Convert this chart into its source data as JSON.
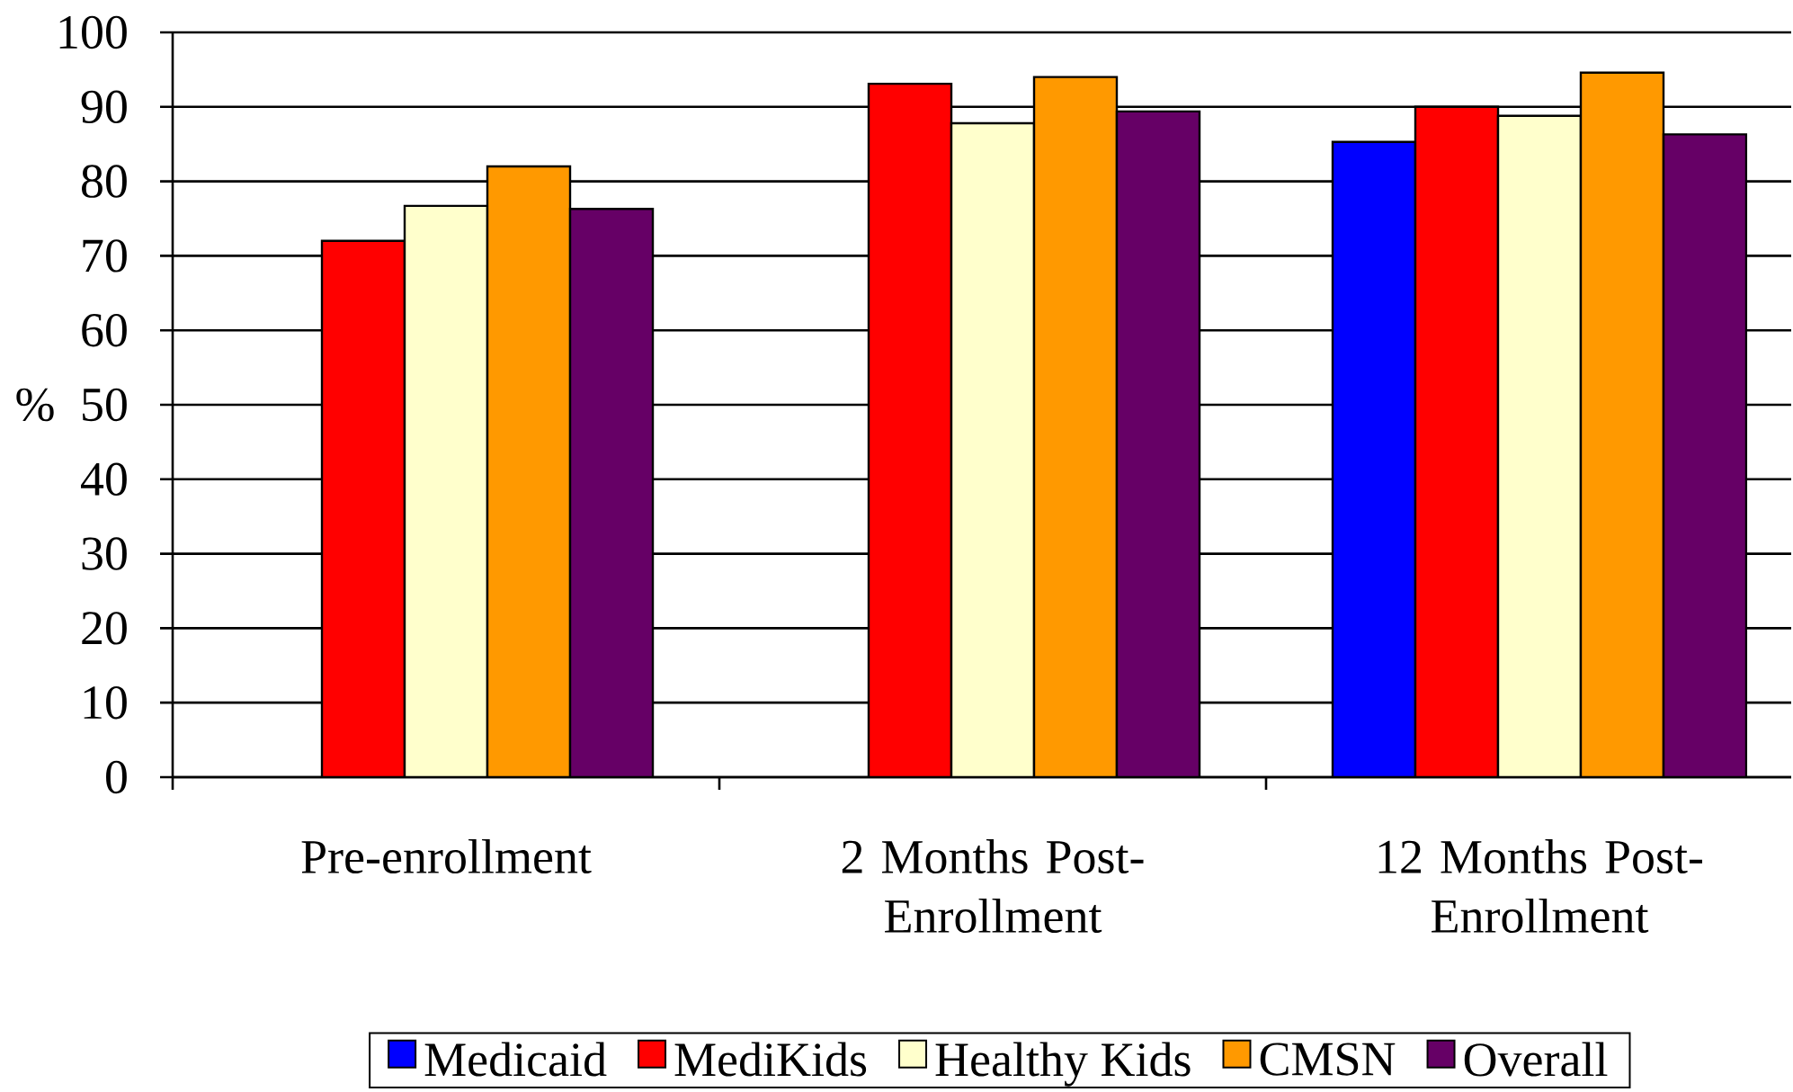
{
  "chart_data": {
    "type": "bar",
    "ylabel": "%",
    "categories": [
      "Pre-enrollment",
      "2 Months Post-Enrollment",
      "12 Months Post-Enrollment"
    ],
    "series": [
      {
        "name": "Medicaid",
        "color": "#0000ff",
        "values": [
          null,
          null,
          85.3
        ]
      },
      {
        "name": "MediKids",
        "color": "#ff0000",
        "values": [
          72.0,
          93.1,
          90.0
        ]
      },
      {
        "name": "Healthy Kids",
        "color": "#ffffcc",
        "values": [
          76.7,
          87.8,
          88.8
        ]
      },
      {
        "name": "CMSN",
        "color": "#ff9900",
        "values": [
          82.0,
          94.0,
          94.6
        ]
      },
      {
        "name": "Overall",
        "color": "#660066",
        "values": [
          76.3,
          89.4,
          86.3
        ]
      }
    ],
    "ylim": [
      0,
      100
    ],
    "yticks": [
      0,
      10,
      20,
      30,
      40,
      50,
      60,
      70,
      80,
      90,
      100
    ],
    "grid": "y",
    "legend": "bottom"
  }
}
